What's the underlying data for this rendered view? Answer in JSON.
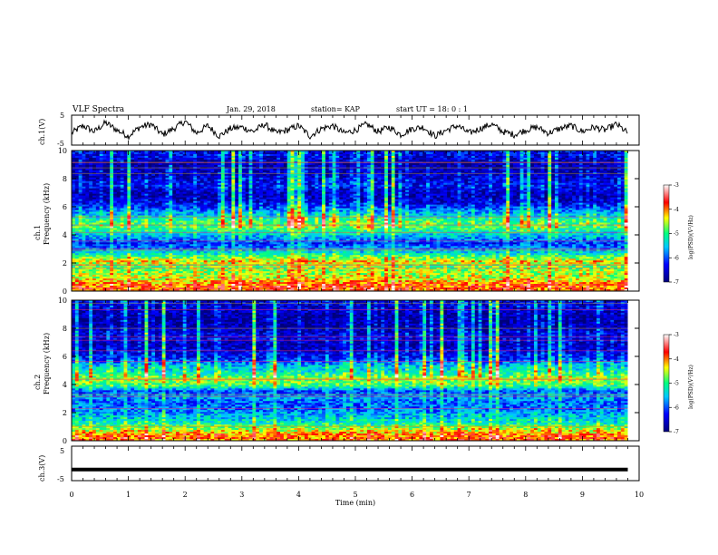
{
  "header": {
    "title": "VLF Spectra",
    "date": "Jan. 29, 2018",
    "station": "station= KAP",
    "start": "start  UT =  18: 0  : 1"
  },
  "chart_data": [
    {
      "type": "line",
      "panel": "ch1-waveform",
      "ylabel": "ch.1(V)",
      "ylim": [
        -5,
        5
      ],
      "yticks": [
        "5",
        "-5"
      ],
      "xlim": [
        0,
        10
      ],
      "color": "#000000",
      "x": [
        0,
        0.2,
        0.4,
        0.6,
        0.8,
        1.0,
        1.2,
        1.4,
        1.6,
        1.8,
        2.0,
        2.2,
        2.4,
        2.6,
        2.8,
        3.0,
        3.2,
        3.4,
        3.6,
        3.8,
        4.0,
        4.2,
        4.4,
        4.6,
        4.8,
        5.0,
        5.2,
        5.4,
        5.6,
        5.8,
        6.0,
        6.2,
        6.4,
        6.6,
        6.8,
        7.0,
        7.2,
        7.4,
        7.6,
        7.8,
        8.0,
        8.2,
        8.4,
        8.6,
        8.8,
        9.0,
        9.2,
        9.4,
        9.6,
        9.8
      ],
      "y": [
        -1,
        1.5,
        -0.5,
        2.5,
        0,
        -2,
        1,
        2,
        -1.5,
        0.5,
        3,
        -1,
        1.5,
        -2,
        0.5,
        1,
        -0.5,
        2,
        -1,
        0,
        1.5,
        -2,
        0.5,
        1.5,
        -1,
        0,
        2,
        -0.5,
        1,
        -1.5,
        0.5,
        1,
        -2,
        0,
        1.5,
        -1,
        0.5,
        2,
        -0.5,
        -1.5,
        0,
        1,
        -1,
        0.5,
        1.5,
        -0.5,
        1,
        0,
        2,
        -1
      ]
    },
    {
      "type": "heatmap",
      "panel": "ch1-spectrogram",
      "ylabel": "ch.1 Frequency (kHz)",
      "ylim": [
        0,
        10
      ],
      "yticks": [
        "0",
        "2",
        "4",
        "6",
        "8",
        "10"
      ],
      "xlim": [
        0,
        10
      ],
      "band_freq_khz": [
        0.4,
        0.9,
        1.3,
        1.8,
        2.1,
        2.6,
        3.0,
        3.4,
        3.9,
        4.5,
        5.0,
        5.6,
        6.1,
        6.5,
        7.0,
        7.5,
        8.2,
        9.0,
        9.7
      ],
      "band_log_psd": [
        -3.9,
        -4.5,
        -4.6,
        -4.8,
        -4.3,
        -5.2,
        -5.8,
        -6.2,
        -5.6,
        -4.9,
        -5.0,
        -5.7,
        -6.3,
        -6.6,
        -6.7,
        -6.3,
        -6.6,
        -6.8,
        -6.4
      ]
    },
    {
      "type": "heatmap",
      "panel": "ch2-spectrogram",
      "ylabel": "ch.2 Frequency (kHz)",
      "ylim": [
        0,
        10
      ],
      "yticks": [
        "0",
        "2",
        "4",
        "6",
        "8",
        "10"
      ],
      "xlim": [
        0,
        10
      ],
      "band_freq_khz": [
        0.4,
        0.9,
        1.3,
        1.8,
        2.2,
        2.7,
        3.1,
        3.5,
        3.9,
        4.4,
        4.8,
        5.3,
        5.8,
        6.3,
        6.8,
        7.3,
        8.0,
        8.8,
        9.6
      ],
      "band_log_psd": [
        -4.0,
        -4.7,
        -5.3,
        -5.6,
        -5.9,
        -6.0,
        -5.7,
        -6.1,
        -5.0,
        -4.6,
        -5.2,
        -5.5,
        -6.2,
        -6.5,
        -6.7,
        -6.4,
        -6.7,
        -6.8,
        -6.5
      ]
    },
    {
      "type": "line",
      "panel": "ch3-waveform",
      "ylabel": "ch.3(V)",
      "ylim": [
        -5,
        5
      ],
      "yticks": [
        "5",
        "-5"
      ],
      "xlim": [
        0,
        10
      ],
      "color": "#000000",
      "x": [
        0,
        9.8
      ],
      "y": [
        -1.8,
        -1.8
      ]
    }
  ],
  "colorbars": [
    {
      "ticks": [
        "-3",
        "-4",
        "-5",
        "-6",
        "-7"
      ],
      "range": [
        -7,
        -3
      ],
      "label": "log(PSD)(V²/Hz)"
    },
    {
      "ticks": [
        "-3",
        "-4",
        "-5",
        "-6",
        "-7"
      ],
      "range": [
        -7,
        -3
      ],
      "label": "log(PSD)(V²/Hz)"
    }
  ],
  "xaxis": {
    "label": "Time  (min)",
    "ticks": [
      "0",
      "1",
      "2",
      "3",
      "4",
      "5",
      "6",
      "7",
      "8",
      "9",
      "10"
    ]
  }
}
